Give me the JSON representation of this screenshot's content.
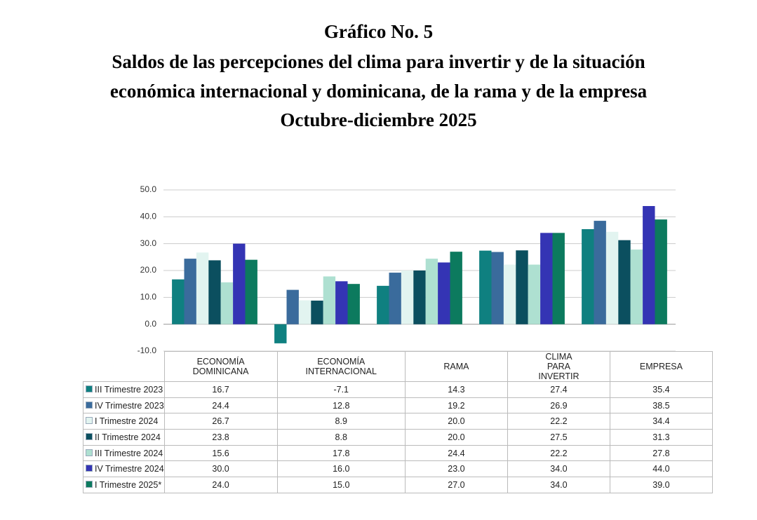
{
  "chart_data": {
    "type": "bar",
    "title": "Gráfico No. 5",
    "subtitle": [
      "Saldos de las percepciones del clima para invertir y de la situación",
      "económica internacional y dominicana, de la rama y de la empresa",
      "Octubre-diciembre 2025"
    ],
    "categories": [
      "ECONOMÍA DOMINICANA",
      "ECONOMÍA INTERNACIONAL",
      "RAMA",
      "CLIMA PARA INVERTIR",
      "EMPRESA"
    ],
    "series": [
      {
        "name": "III Trimestre 2023",
        "color": "#0f8080",
        "values": [
          16.7,
          -7.1,
          14.3,
          27.4,
          35.4
        ],
        "value_labels": [
          "16.7",
          "-7.1",
          "14.3",
          "27.4",
          "35.4"
        ]
      },
      {
        "name": "IV Trimestre 2023",
        "color": "#3a6b9c",
        "values": [
          24.4,
          12.8,
          19.2,
          26.9,
          38.5
        ],
        "value_labels": [
          "24.4",
          "12.8",
          "19.2",
          "26.9",
          "38.5"
        ]
      },
      {
        "name": "I Trimestre 2024",
        "color": "#e2f4f0",
        "values": [
          26.7,
          8.9,
          20.0,
          22.2,
          34.4
        ],
        "value_labels": [
          "26.7",
          "8.9",
          "20.0",
          "22.2",
          "34.4"
        ]
      },
      {
        "name": "II Trimestre 2024",
        "color": "#0b4f5f",
        "values": [
          23.8,
          8.8,
          20.0,
          27.5,
          31.3
        ],
        "value_labels": [
          "23.8",
          "8.8",
          "20.0",
          "27.5",
          "31.3"
        ]
      },
      {
        "name": "III Trimestre 2024",
        "color": "#aee0d1",
        "values": [
          15.6,
          17.8,
          24.4,
          22.2,
          27.8
        ],
        "value_labels": [
          "15.6",
          "17.8",
          "24.4",
          "22.2",
          "27.8"
        ]
      },
      {
        "name": "IV Trimestre 2024",
        "color": "#3434b4",
        "values": [
          30.0,
          16.0,
          23.0,
          34.0,
          44.0
        ],
        "value_labels": [
          "30.0",
          "16.0",
          "23.0",
          "34.0",
          "44.0"
        ]
      },
      {
        "name": "I Trimestre 2025*",
        "color": "#0c7a5e",
        "values": [
          24.0,
          15.0,
          27.0,
          34.0,
          39.0
        ],
        "value_labels": [
          "24.0",
          "15.0",
          "27.0",
          "34.0",
          "39.0"
        ]
      }
    ],
    "ylim": [
      -10,
      50
    ],
    "yticks": [
      {
        "value": -10,
        "label": "-10.0"
      },
      {
        "value": 0,
        "label": "0.0"
      },
      {
        "value": 10,
        "label": "10.0"
      },
      {
        "value": 20,
        "label": "20.0"
      },
      {
        "value": 30,
        "label": "30.0"
      },
      {
        "value": 40,
        "label": "40.0"
      },
      {
        "value": 50,
        "label": "50.0"
      }
    ],
    "grid": true
  }
}
